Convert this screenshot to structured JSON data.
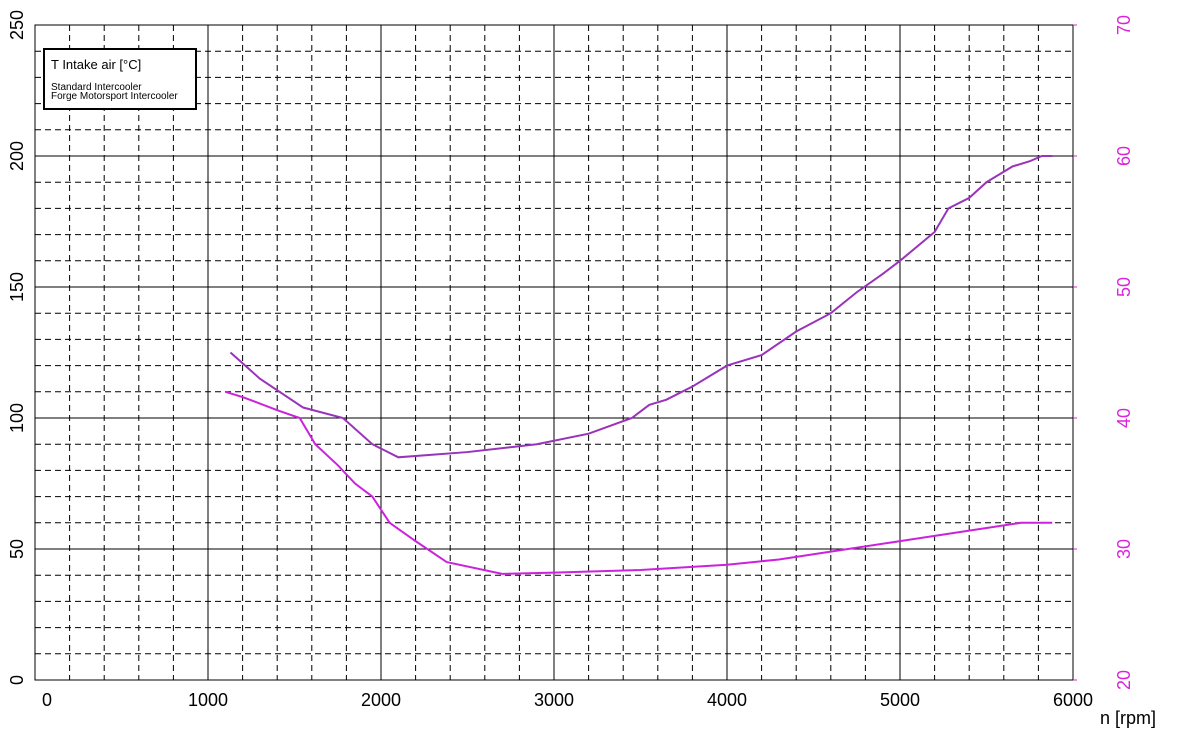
{
  "chart_data": {
    "type": "line",
    "legend_title": "T Intake air [°C]",
    "xlabel": "n [rpm]",
    "xlim": [
      0,
      6000
    ],
    "xticks": [
      0,
      1000,
      2000,
      3000,
      4000,
      5000,
      6000
    ],
    "ylim": [
      0,
      250
    ],
    "yticks": [
      0,
      50,
      100,
      150,
      200,
      250
    ],
    "y2lim": [
      20,
      70
    ],
    "y2ticks": [
      20,
      30,
      40,
      50,
      60,
      70
    ],
    "y2color": "#dd22dd",
    "grid": true,
    "legend": "upper left",
    "series": [
      {
        "name": "Standard Intercooler",
        "color": "#9933bb",
        "x": [
          1130,
          1300,
          1550,
          1780,
          1950,
          2100,
          2500,
          2900,
          3200,
          3450,
          3550,
          3650,
          3800,
          4000,
          4200,
          4400,
          4600,
          4750,
          4900,
          5000,
          5200,
          5280,
          5400,
          5500,
          5650,
          5750,
          5820,
          5880
        ],
        "values": [
          125,
          115,
          104,
          100,
          90,
          85,
          87,
          90,
          94,
          100,
          105,
          107,
          112,
          120,
          124,
          133,
          140,
          148,
          155,
          160,
          171,
          180,
          184,
          190,
          196,
          198,
          200,
          200
        ]
      },
      {
        "name": "Forge Motorsport Intercooler",
        "color": "#cc22dd",
        "x": [
          1100,
          1200,
          1400,
          1530,
          1620,
          1750,
          1850,
          1950,
          2050,
          2200,
          2380,
          2700,
          3000,
          3500,
          4000,
          4300,
          4600,
          5000,
          5400,
          5700,
          5880
        ],
        "values": [
          110,
          108,
          103,
          100,
          90,
          82,
          75,
          70,
          60,
          53,
          45,
          40.5,
          41,
          42,
          44,
          46,
          49,
          53,
          57,
          60,
          60
        ]
      }
    ]
  }
}
